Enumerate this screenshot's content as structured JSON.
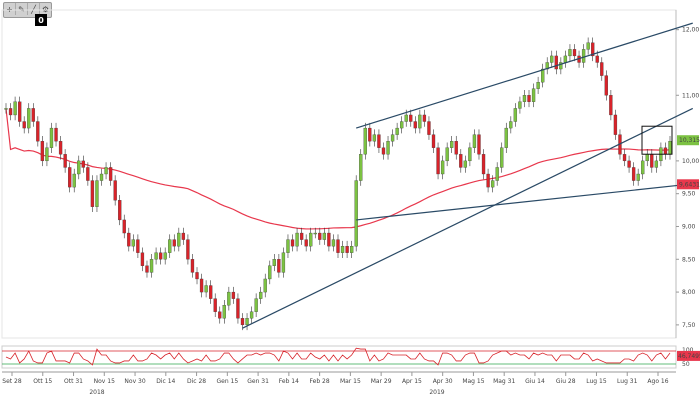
{
  "toolbar": {
    "icons": [
      "plus-icon",
      "pencil-icon",
      "line-icon",
      "settings-icon"
    ],
    "glyphs": [
      "+",
      "✎",
      "╱",
      "⚙"
    ]
  },
  "badge": "0",
  "colors": {
    "up": "#7cc242",
    "down": "#d8232a",
    "ma": "#e8374c",
    "trend": "#2a4a66",
    "osc_red": "#d8232a",
    "osc_green": "#2fa84f",
    "last_price_box": "#7cc242",
    "ma_box": "#e8374c"
  },
  "chart_data": {
    "type": "candlestick",
    "title": "",
    "y_ticks": [
      "12,00",
      "11,00",
      "10,00",
      "9,50",
      "9,00",
      "8,50",
      "8,00",
      "7,50"
    ],
    "y_tick_values": [
      12.0,
      11.0,
      10.0,
      9.5,
      9.0,
      8.5,
      8.0,
      7.5
    ],
    "ylim": [
      7.3,
      12.3
    ],
    "last_price_label": "10,315",
    "last_price": 10.315,
    "ma_label": "9,6431",
    "ma_value": 9.6431,
    "x_ticks": [
      "Set 28",
      "Ott 15",
      "Ott 31",
      "Nov 15",
      "Nov 30",
      "Dic 14",
      "Dic 28",
      "Gen 15",
      "Gen 31",
      "Feb 14",
      "Feb 28",
      "Mar 15",
      "Mar 29",
      "Apr 15",
      "Apr 30",
      "Mag 15",
      "Mag 31",
      "Giu 14",
      "Giu 28",
      "Lug 15",
      "Lug 31",
      "Ago 16"
    ],
    "years": [
      "2018",
      "2019"
    ],
    "oscillator": {
      "y_ticks": [
        "100",
        "50"
      ],
      "last_label": "46,7495",
      "last_value": 46.7495
    },
    "close": [
      10.8,
      10.7,
      10.9,
      10.6,
      10.5,
      10.8,
      10.6,
      10.3,
      10.0,
      10.2,
      10.5,
      10.3,
      10.1,
      9.9,
      9.6,
      9.8,
      10.0,
      9.9,
      9.7,
      9.3,
      9.7,
      9.8,
      9.9,
      9.7,
      9.4,
      9.1,
      8.9,
      8.7,
      8.8,
      8.6,
      8.4,
      8.3,
      8.5,
      8.6,
      8.5,
      8.6,
      8.8,
      8.7,
      8.9,
      8.8,
      8.5,
      8.3,
      8.2,
      8.0,
      8.1,
      7.9,
      7.7,
      7.6,
      7.8,
      8.0,
      7.9,
      7.6,
      7.5,
      7.6,
      7.7,
      7.9,
      8.0,
      8.2,
      8.4,
      8.5,
      8.3,
      8.6,
      8.8,
      8.7,
      8.9,
      8.8,
      8.7,
      8.9,
      8.9,
      8.8,
      8.9,
      8.7,
      8.8,
      8.6,
      8.7,
      8.6,
      8.7,
      9.7,
      10.1,
      10.5,
      10.3,
      10.4,
      10.2,
      10.1,
      10.3,
      10.4,
      10.5,
      10.6,
      10.7,
      10.6,
      10.5,
      10.7,
      10.6,
      10.4,
      10.2,
      9.8,
      10.0,
      10.2,
      10.3,
      10.1,
      9.9,
      10.0,
      10.2,
      10.4,
      10.1,
      9.8,
      9.6,
      9.7,
      9.9,
      10.2,
      10.5,
      10.6,
      10.8,
      10.9,
      11.0,
      10.9,
      11.1,
      11.2,
      11.4,
      11.5,
      11.6,
      11.4,
      11.5,
      11.6,
      11.7,
      11.6,
      11.5,
      11.7,
      11.8,
      11.6,
      11.5,
      11.3,
      11.0,
      10.7,
      10.4,
      10.1,
      10.0,
      9.9,
      9.7,
      9.8,
      10.0,
      10.1,
      9.9,
      10.0,
      10.2,
      10.1,
      10.3
    ]
  }
}
